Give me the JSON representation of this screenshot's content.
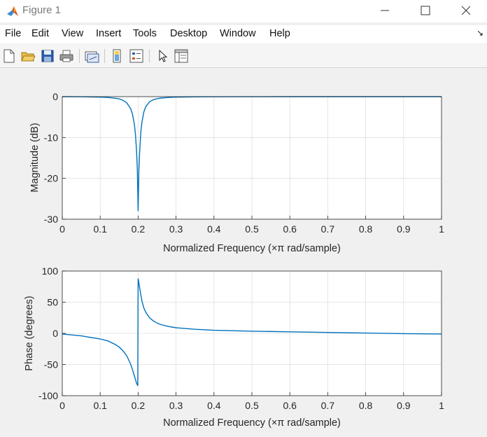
{
  "window": {
    "title": "Figure 1"
  },
  "menu": [
    "File",
    "Edit",
    "View",
    "Insert",
    "Tools",
    "Desktop",
    "Window",
    "Help"
  ],
  "toolbar": {
    "buttons": [
      "new-figure",
      "open-file",
      "save-figure",
      "print-figure",
      "link-plot",
      "insert-colorbar",
      "insert-legend",
      "edit-plot",
      "open-property-inspector"
    ]
  },
  "chart_data": [
    {
      "type": "line",
      "ylabel": "Magnitude (dB)",
      "xlabel": "Normalized Frequency  (×π rad/sample)",
      "xlim": [
        0,
        1
      ],
      "ylim": [
        -30,
        0
      ],
      "xticks": [
        "0",
        "0.1",
        "0.2",
        "0.3",
        "0.4",
        "0.5",
        "0.6",
        "0.7",
        "0.8",
        "0.9",
        "1"
      ],
      "yticks": [
        "0",
        "-10",
        "-20",
        "-30"
      ],
      "grid": true,
      "color": "#0072bd",
      "x": [
        0,
        0.05,
        0.1,
        0.12,
        0.14,
        0.15,
        0.16,
        0.17,
        0.18,
        0.185,
        0.19,
        0.193,
        0.196,
        0.198,
        0.2,
        0.202,
        0.204,
        0.207,
        0.21,
        0.215,
        0.22,
        0.23,
        0.24,
        0.25,
        0.26,
        0.28,
        0.3,
        0.35,
        0.4,
        0.5,
        0.6,
        0.7,
        0.8,
        0.9,
        1
      ],
      "y": [
        0,
        -0.03,
        -0.12,
        -0.2,
        -0.4,
        -0.55,
        -0.9,
        -1.5,
        -2.9,
        -4.3,
        -6.7,
        -9.2,
        -13.5,
        -18,
        -28,
        -18,
        -13.5,
        -8.8,
        -6.3,
        -3.8,
        -2.5,
        -1.25,
        -0.75,
        -0.5,
        -0.35,
        -0.2,
        -0.12,
        -0.06,
        -0.03,
        -0.01,
        0,
        0,
        0,
        0,
        0
      ]
    },
    {
      "type": "line",
      "ylabel": "Phase (degrees)",
      "xlabel": "Normalized Frequency  (×π rad/sample)",
      "xlim": [
        0,
        1
      ],
      "ylim": [
        -100,
        100
      ],
      "xticks": [
        "0",
        "0.1",
        "0.2",
        "0.3",
        "0.4",
        "0.5",
        "0.6",
        "0.7",
        "0.8",
        "0.9",
        "1"
      ],
      "yticks": [
        "100",
        "50",
        "0",
        "-50",
        "-100"
      ],
      "grid": true,
      "color": "#0072bd",
      "x": [
        0,
        0.05,
        0.1,
        0.12,
        0.14,
        0.15,
        0.16,
        0.17,
        0.18,
        0.185,
        0.19,
        0.193,
        0.196,
        0.199,
        0.2,
        0.201,
        0.204,
        0.207,
        0.21,
        0.215,
        0.22,
        0.23,
        0.24,
        0.25,
        0.26,
        0.28,
        0.3,
        0.35,
        0.4,
        0.5,
        0.6,
        0.7,
        0.8,
        0.9,
        1
      ],
      "y": [
        -1,
        -4,
        -9,
        -12,
        -18,
        -22,
        -28,
        -36,
        -49,
        -58,
        -68,
        -74,
        -80,
        -84,
        88,
        85,
        73,
        62,
        52,
        41,
        34,
        25,
        20,
        16.5,
        14,
        11,
        9,
        6.5,
        5,
        3.5,
        2.5,
        1.5,
        0.5,
        -0.5,
        -1
      ]
    }
  ]
}
